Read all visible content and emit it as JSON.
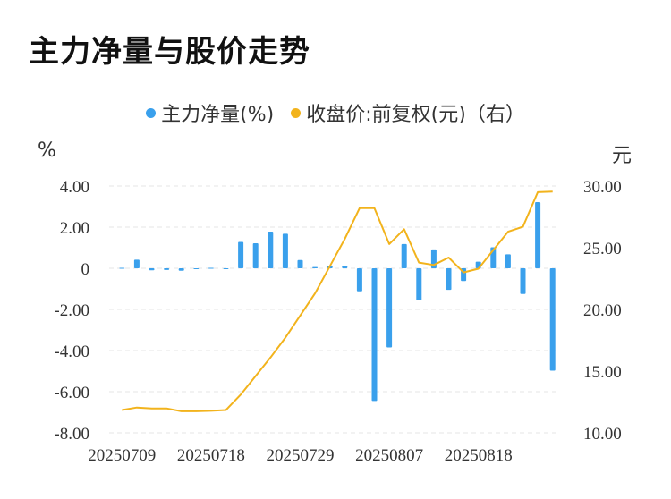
{
  "title": "主力净量与股价走势",
  "colors": {
    "bar": "#3aa0ec",
    "line": "#f2b31c",
    "grid": "#e6e6e6"
  },
  "chart_data": {
    "type": "bar",
    "title": "主力净量与股价走势",
    "legend": {
      "placement": "top-center"
    },
    "y_left_unit": "%",
    "y_right_unit": "元",
    "y_left_ticks": [
      "4.00",
      "2.00",
      "0",
      "-2.00",
      "-4.00",
      "-6.00",
      "-8.00"
    ],
    "y_right_ticks": [
      "30.00",
      "25.00",
      "20.00",
      "15.00",
      "10.00"
    ],
    "x_tick_labels": [
      "20250709",
      "20250718",
      "20250729",
      "20250807",
      "20250818"
    ],
    "ylim_left": [
      -8,
      4
    ],
    "ylim_right": [
      10,
      30
    ],
    "grid": true,
    "series": [
      {
        "name": "主力净量(%)",
        "type": "bar",
        "axis": "left",
        "values": [
          0.02,
          0.42,
          -0.1,
          -0.08,
          -0.12,
          -0.04,
          0.02,
          -0.02,
          1.28,
          1.22,
          1.78,
          1.68,
          0.4,
          0.06,
          0.12,
          0.12,
          -1.12,
          -6.45,
          -3.85,
          1.18,
          -1.55,
          0.92,
          -1.05,
          -0.62,
          0.32,
          1.02,
          0.68,
          -1.25,
          3.22,
          -4.98
        ]
      },
      {
        "name": "收盘价:前复权(元)（右）",
        "type": "line",
        "axis": "right",
        "values": [
          11.85,
          12.05,
          11.98,
          11.98,
          11.75,
          11.75,
          11.78,
          11.85,
          13.1,
          14.6,
          16.1,
          17.7,
          19.5,
          21.3,
          23.5,
          25.7,
          28.2,
          28.2,
          25.3,
          26.5,
          23.8,
          23.6,
          24.2,
          23.0,
          23.3,
          24.8,
          26.3,
          26.7,
          29.5,
          29.55
        ]
      }
    ]
  }
}
